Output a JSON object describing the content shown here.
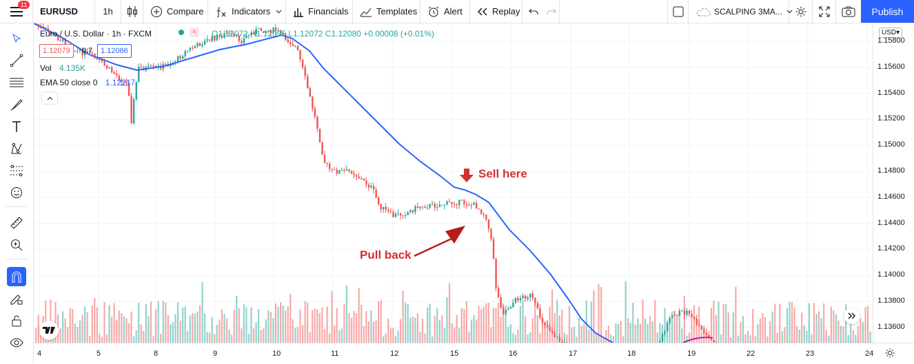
{
  "toolbar": {
    "notif_count": "11",
    "symbol": "EURUSD",
    "interval": "1h",
    "compare": "Compare",
    "indicators": "Indicators",
    "financials": "Financials",
    "templates": "Templates",
    "alert": "Alert",
    "replay": "Replay",
    "layout_name": "SCALPING 3MA...",
    "publish": "Publish"
  },
  "legend": {
    "title": "Euro / U.S. Dollar · 1h · FXCM",
    "ohlc": "O1.12072 H1.12095 L1.12072 C1.12080 +0.00008 (+0.01%)",
    "bid": "1.12079",
    "spread": "0.7",
    "ask": "1.12086",
    "vol_label": "Vol",
    "vol_value": "4.135K",
    "ema_label": "EMA 50 close 0",
    "ema_value": "1.12217"
  },
  "currency": "USD",
  "price_axis": [
    "1.15800",
    "1.15600",
    "1.15400",
    "1.15200",
    "1.15000",
    "1.14800",
    "1.14600",
    "1.14400",
    "1.14200",
    "1.14000",
    "1.13800",
    "1.13600"
  ],
  "time_axis": [
    "4",
    "5",
    "8",
    "9",
    "10",
    "11",
    "12",
    "15",
    "16",
    "17",
    "18",
    "19",
    "22",
    "23",
    "24"
  ],
  "annotations": {
    "sell": "Sell here",
    "pullback": "Pull back"
  },
  "colors": {
    "up": "#26a69a",
    "down": "#ef5350",
    "ema": "#2962ff",
    "annotation": "#d32f2f",
    "accent": "#2962ff"
  }
}
